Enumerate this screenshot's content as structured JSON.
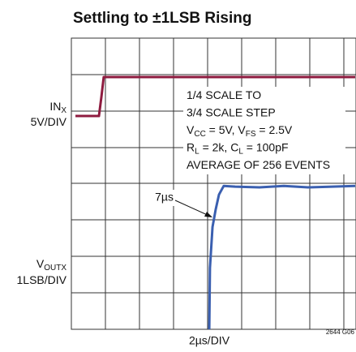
{
  "chart_data": {
    "type": "line",
    "title": "Settling to ±1LSB Rising",
    "x_label": "2µs/DIV",
    "code": "2644 G06",
    "xlim": [
      0,
      16.67
    ],
    "ylim": [
      0,
      8
    ],
    "channel_labels": [
      [
        [
          {
            "text": "IN"
          },
          {
            "text": "X",
            "sub": true
          }
        ],
        [
          {
            "text": "5V/DIV"
          }
        ]
      ],
      [
        [
          {
            "text": "V"
          },
          {
            "text": "OUTX",
            "sub": true
          }
        ],
        [
          {
            "text": "1LSB/DIV"
          }
        ]
      ]
    ],
    "annotation": [
      [
        {
          "text": "1/4 SCALE TO"
        }
      ],
      [
        {
          "text": "3/4 SCALE STEP"
        }
      ],
      [
        {
          "text": "V"
        },
        {
          "text": "CC",
          "sub": true
        },
        {
          "text": " = 5V, V"
        },
        {
          "text": "FS",
          "sub": true
        },
        {
          "text": " = 2.5V"
        }
      ],
      [
        {
          "text": "R"
        },
        {
          "text": "L",
          "sub": true
        },
        {
          "text": " = 2k, C"
        },
        {
          "text": "L",
          "sub": true
        },
        {
          "text": " = 100pF"
        }
      ],
      [
        {
          "text": "AVERAGE OF 256 EVENTS"
        }
      ]
    ],
    "callout": "7µs",
    "series": [
      {
        "color": "#8e1b3f",
        "x": [
          0.24,
          1.62,
          1.76,
          1.9,
          16.67
        ],
        "values": [
          5.86,
          5.86,
          6.37,
          6.93,
          6.93
        ]
      },
      {
        "color": "#3a5fb0",
        "x": [
          8.1,
          8.14,
          8.29,
          8.48,
          8.67,
          8.95,
          9.62,
          11.05,
          12.48,
          13.9,
          15.33,
          16.67
        ],
        "values": [
          0,
          1.69,
          2.81,
          3.3,
          3.7,
          3.94,
          3.92,
          3.9,
          3.94,
          3.9,
          3.92,
          3.94
        ]
      }
    ]
  }
}
